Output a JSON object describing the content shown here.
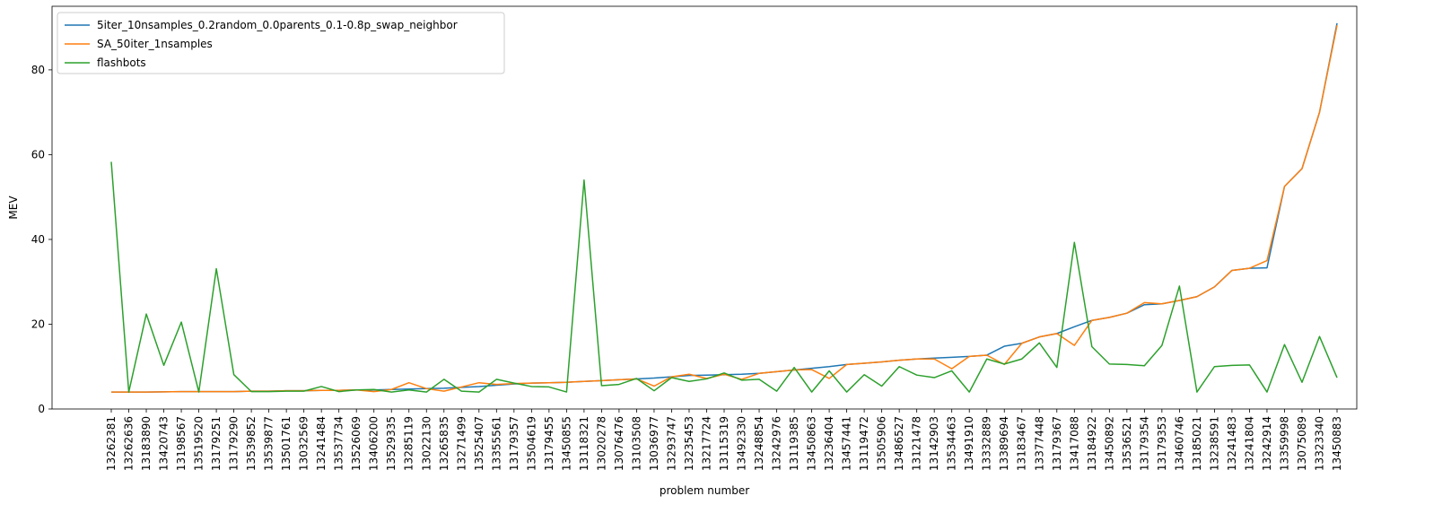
{
  "chart_data": {
    "type": "line",
    "xlabel": "problem number",
    "ylabel": "MEV",
    "ylim": [
      0,
      95
    ],
    "yticks": [
      0,
      20,
      40,
      60,
      80
    ],
    "legend_position": "top-left",
    "grid": false,
    "categories": [
      "13262381",
      "13262636",
      "13183890",
      "13420743",
      "13198567",
      "13519520",
      "13179251",
      "13179290",
      "13539852",
      "13539877",
      "13501761",
      "13032569",
      "13241484",
      "13537734",
      "13526069",
      "13406200",
      "13529335",
      "13285119",
      "13022130",
      "13265835",
      "13271499",
      "13525407",
      "13355561",
      "13179357",
      "13504619",
      "13179455",
      "13450855",
      "13118321",
      "13020278",
      "13076476",
      "13103508",
      "13036977",
      "13293747",
      "13235453",
      "13217724",
      "13115319",
      "13492330",
      "13248854",
      "13242976",
      "13119385",
      "13450863",
      "13236404",
      "13457441",
      "13119472",
      "13505906",
      "13486527",
      "13121478",
      "13142903",
      "13534463",
      "13491910",
      "13332889",
      "13389694",
      "13183467",
      "13377448",
      "13179367",
      "13417088",
      "13184922",
      "13450892",
      "13536521",
      "13179354",
      "13179353",
      "13460746",
      "13185021",
      "13238591",
      "13241483",
      "13241804",
      "13242914",
      "13359998",
      "13075089",
      "13323340",
      "13450883"
    ],
    "series": [
      {
        "name": "5iter_10nsamples_0.2random_0.0parents_0.1-0.8p_swap_neighbor",
        "color": "#1f77b4",
        "values": [
          4.0,
          4.0,
          4.0,
          4.05,
          4.1,
          4.1,
          4.1,
          4.1,
          4.2,
          4.2,
          4.3,
          4.3,
          4.4,
          4.4,
          4.5,
          4.5,
          4.6,
          4.7,
          4.8,
          4.9,
          5.1,
          5.3,
          5.6,
          5.9,
          6.1,
          6.2,
          6.3,
          6.5,
          6.7,
          6.9,
          7.1,
          7.3,
          7.6,
          7.9,
          8.0,
          8.1,
          8.2,
          8.4,
          8.8,
          9.2,
          9.6,
          10.0,
          10.5,
          10.8,
          11.1,
          11.5,
          11.8,
          12.0,
          12.2,
          12.4,
          12.7,
          14.8,
          15.5,
          17.0,
          17.8,
          19.4,
          20.9,
          21.6,
          22.6,
          24.6,
          24.8,
          25.6,
          26.5,
          28.8,
          32.7,
          33.2,
          33.3,
          52.5,
          56.7,
          70.0,
          91.0
        ]
      },
      {
        "name": "SA_50iter_1nsamples",
        "color": "#ff7f0e",
        "values": [
          4.0,
          4.0,
          4.0,
          4.05,
          4.1,
          4.1,
          4.1,
          4.1,
          4.2,
          4.2,
          4.3,
          4.3,
          4.4,
          4.4,
          4.5,
          4.1,
          4.6,
          6.2,
          4.8,
          4.2,
          5.2,
          6.2,
          5.8,
          6.0,
          6.1,
          6.2,
          6.3,
          6.5,
          6.7,
          6.9,
          7.1,
          5.4,
          7.6,
          8.2,
          7.2,
          8.2,
          7.0,
          8.4,
          8.8,
          9.2,
          9.3,
          7.2,
          10.5,
          10.8,
          11.1,
          11.5,
          11.8,
          11.8,
          9.5,
          12.4,
          12.7,
          10.5,
          15.5,
          17.0,
          17.8,
          15.0,
          20.9,
          21.6,
          22.6,
          25.1,
          24.8,
          25.6,
          26.5,
          28.8,
          32.7,
          33.2,
          35.0,
          52.5,
          56.7,
          70.0,
          90.5
        ]
      },
      {
        "name": "flashbots",
        "color": "#2ca02c",
        "values": [
          58.3,
          4.0,
          22.4,
          10.3,
          20.5,
          4.0,
          33.1,
          8.1,
          4.1,
          4.1,
          4.2,
          4.2,
          5.3,
          4.1,
          4.5,
          4.6,
          4.0,
          4.5,
          4.0,
          7.0,
          4.2,
          4.0,
          7.0,
          6.1,
          5.3,
          5.2,
          4.0,
          54.0,
          5.5,
          5.8,
          7.2,
          4.3,
          7.4,
          6.5,
          7.1,
          8.5,
          6.8,
          7.0,
          4.2,
          9.8,
          4.0,
          9.0,
          4.0,
          8.1,
          5.4,
          10.0,
          8.0,
          7.4,
          9.0,
          4.0,
          11.8,
          10.6,
          11.8,
          15.6,
          9.8,
          39.3,
          14.7,
          10.6,
          10.5,
          10.2,
          15.0,
          29.0,
          4.0,
          10.0,
          10.3,
          10.4,
          4.0,
          15.2,
          6.3,
          17.1,
          7.4
        ]
      }
    ]
  }
}
